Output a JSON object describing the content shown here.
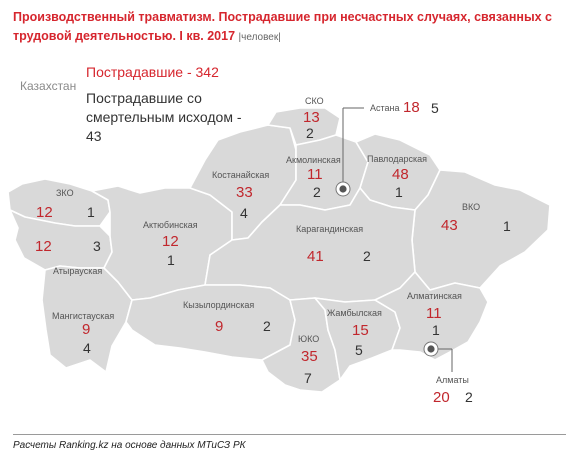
{
  "title": "Производственный травматизм. Пострадавшие при несчастных случаях, связанных с трудовой деятельностью. I кв. 2017",
  "title_unit": "|человек|",
  "country": {
    "name": "Казахстан",
    "injured_label": "Пострадавшие - 342",
    "fatal_label": "Пострадавшие со смертельным исходом - 43"
  },
  "regions": {
    "zko": {
      "name": "ЗКО",
      "injured": "12",
      "fatal": "1"
    },
    "atyrau": {
      "name": "Атырауская",
      "injured": "12",
      "fatal": "3"
    },
    "mangistau": {
      "name": "Мангистауская",
      "injured": "9",
      "fatal": "4"
    },
    "aktobe": {
      "name": "Актюбинская",
      "injured": "12",
      "fatal": "1"
    },
    "kostanay": {
      "name": "Костанайская",
      "injured": "33",
      "fatal": "4"
    },
    "sko": {
      "name": "СКО",
      "injured": "13",
      "fatal": "2"
    },
    "akmola": {
      "name": "Акмолинская",
      "injured": "11",
      "fatal": "2"
    },
    "astana": {
      "name": "Астана",
      "injured": "18",
      "fatal": "5"
    },
    "pavlodar": {
      "name": "Павлодарская",
      "injured": "48",
      "fatal": "1"
    },
    "vko": {
      "name": "ВКО",
      "injured": "43",
      "fatal": "1"
    },
    "karaganda": {
      "name": "Карагандинская",
      "injured": "41",
      "fatal": "2"
    },
    "kyzylorda": {
      "name": "Кызылординская",
      "injured": "9",
      "fatal": "2"
    },
    "uko": {
      "name": "ЮКО",
      "injured": "35",
      "fatal": "7"
    },
    "zhambyl": {
      "name": "Жамбылская",
      "injured": "15",
      "fatal": "5"
    },
    "almaty_obl": {
      "name": "Алматинская",
      "injured": "11",
      "fatal": "1"
    },
    "almaty": {
      "name": "Алматы",
      "injured": "20",
      "fatal": "2"
    }
  },
  "colors": {
    "title": "#d6262e",
    "map_fill": "#d9d9d9",
    "border": "#ffffff",
    "injured_value": "#c1272d",
    "fatal_value": "#333333"
  },
  "footer": "Расчеты Ranking.kz на основе данных МТиСЗ РК"
}
